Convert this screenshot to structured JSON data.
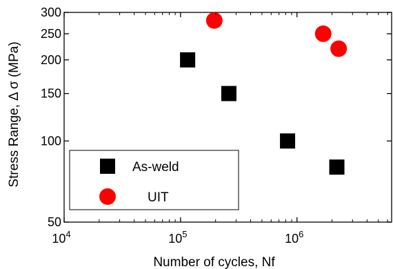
{
  "chart_data": {
    "type": "scatter",
    "title": "",
    "xlabel": "Number of cycles, Nf",
    "ylabel": "Stress Range, Δ σ (MPa)",
    "xscale": "log",
    "yscale": "log",
    "xlim": [
      10000,
      6500000
    ],
    "ylim": [
      50,
      300
    ],
    "grid": false,
    "legend_position": "bottom-left",
    "x_ticks": [
      {
        "value": 10000,
        "base": "10",
        "exp": "4"
      },
      {
        "value": 100000,
        "base": "10",
        "exp": "5"
      },
      {
        "value": 1000000,
        "base": "10",
        "exp": "6"
      }
    ],
    "y_ticks": [
      {
        "value": 50,
        "label": "50"
      },
      {
        "value": 100,
        "label": "100"
      },
      {
        "value": 150,
        "label": "150"
      },
      {
        "value": 200,
        "label": "200"
      },
      {
        "value": 250,
        "label": "250"
      },
      {
        "value": 300,
        "label": "300"
      }
    ],
    "series": [
      {
        "name": "As-weld",
        "marker": "square",
        "color": "#000000",
        "points": [
          {
            "x": 115000,
            "y": 200
          },
          {
            "x": 260000,
            "y": 150
          },
          {
            "x": 830000,
            "y": 100
          },
          {
            "x": 2200000,
            "y": 80
          }
        ]
      },
      {
        "name": "UIT",
        "marker": "circle",
        "color": "#ff0000",
        "points": [
          {
            "x": 195000,
            "y": 280
          },
          {
            "x": 1680000,
            "y": 250
          },
          {
            "x": 2280000,
            "y": 220
          }
        ]
      }
    ]
  }
}
